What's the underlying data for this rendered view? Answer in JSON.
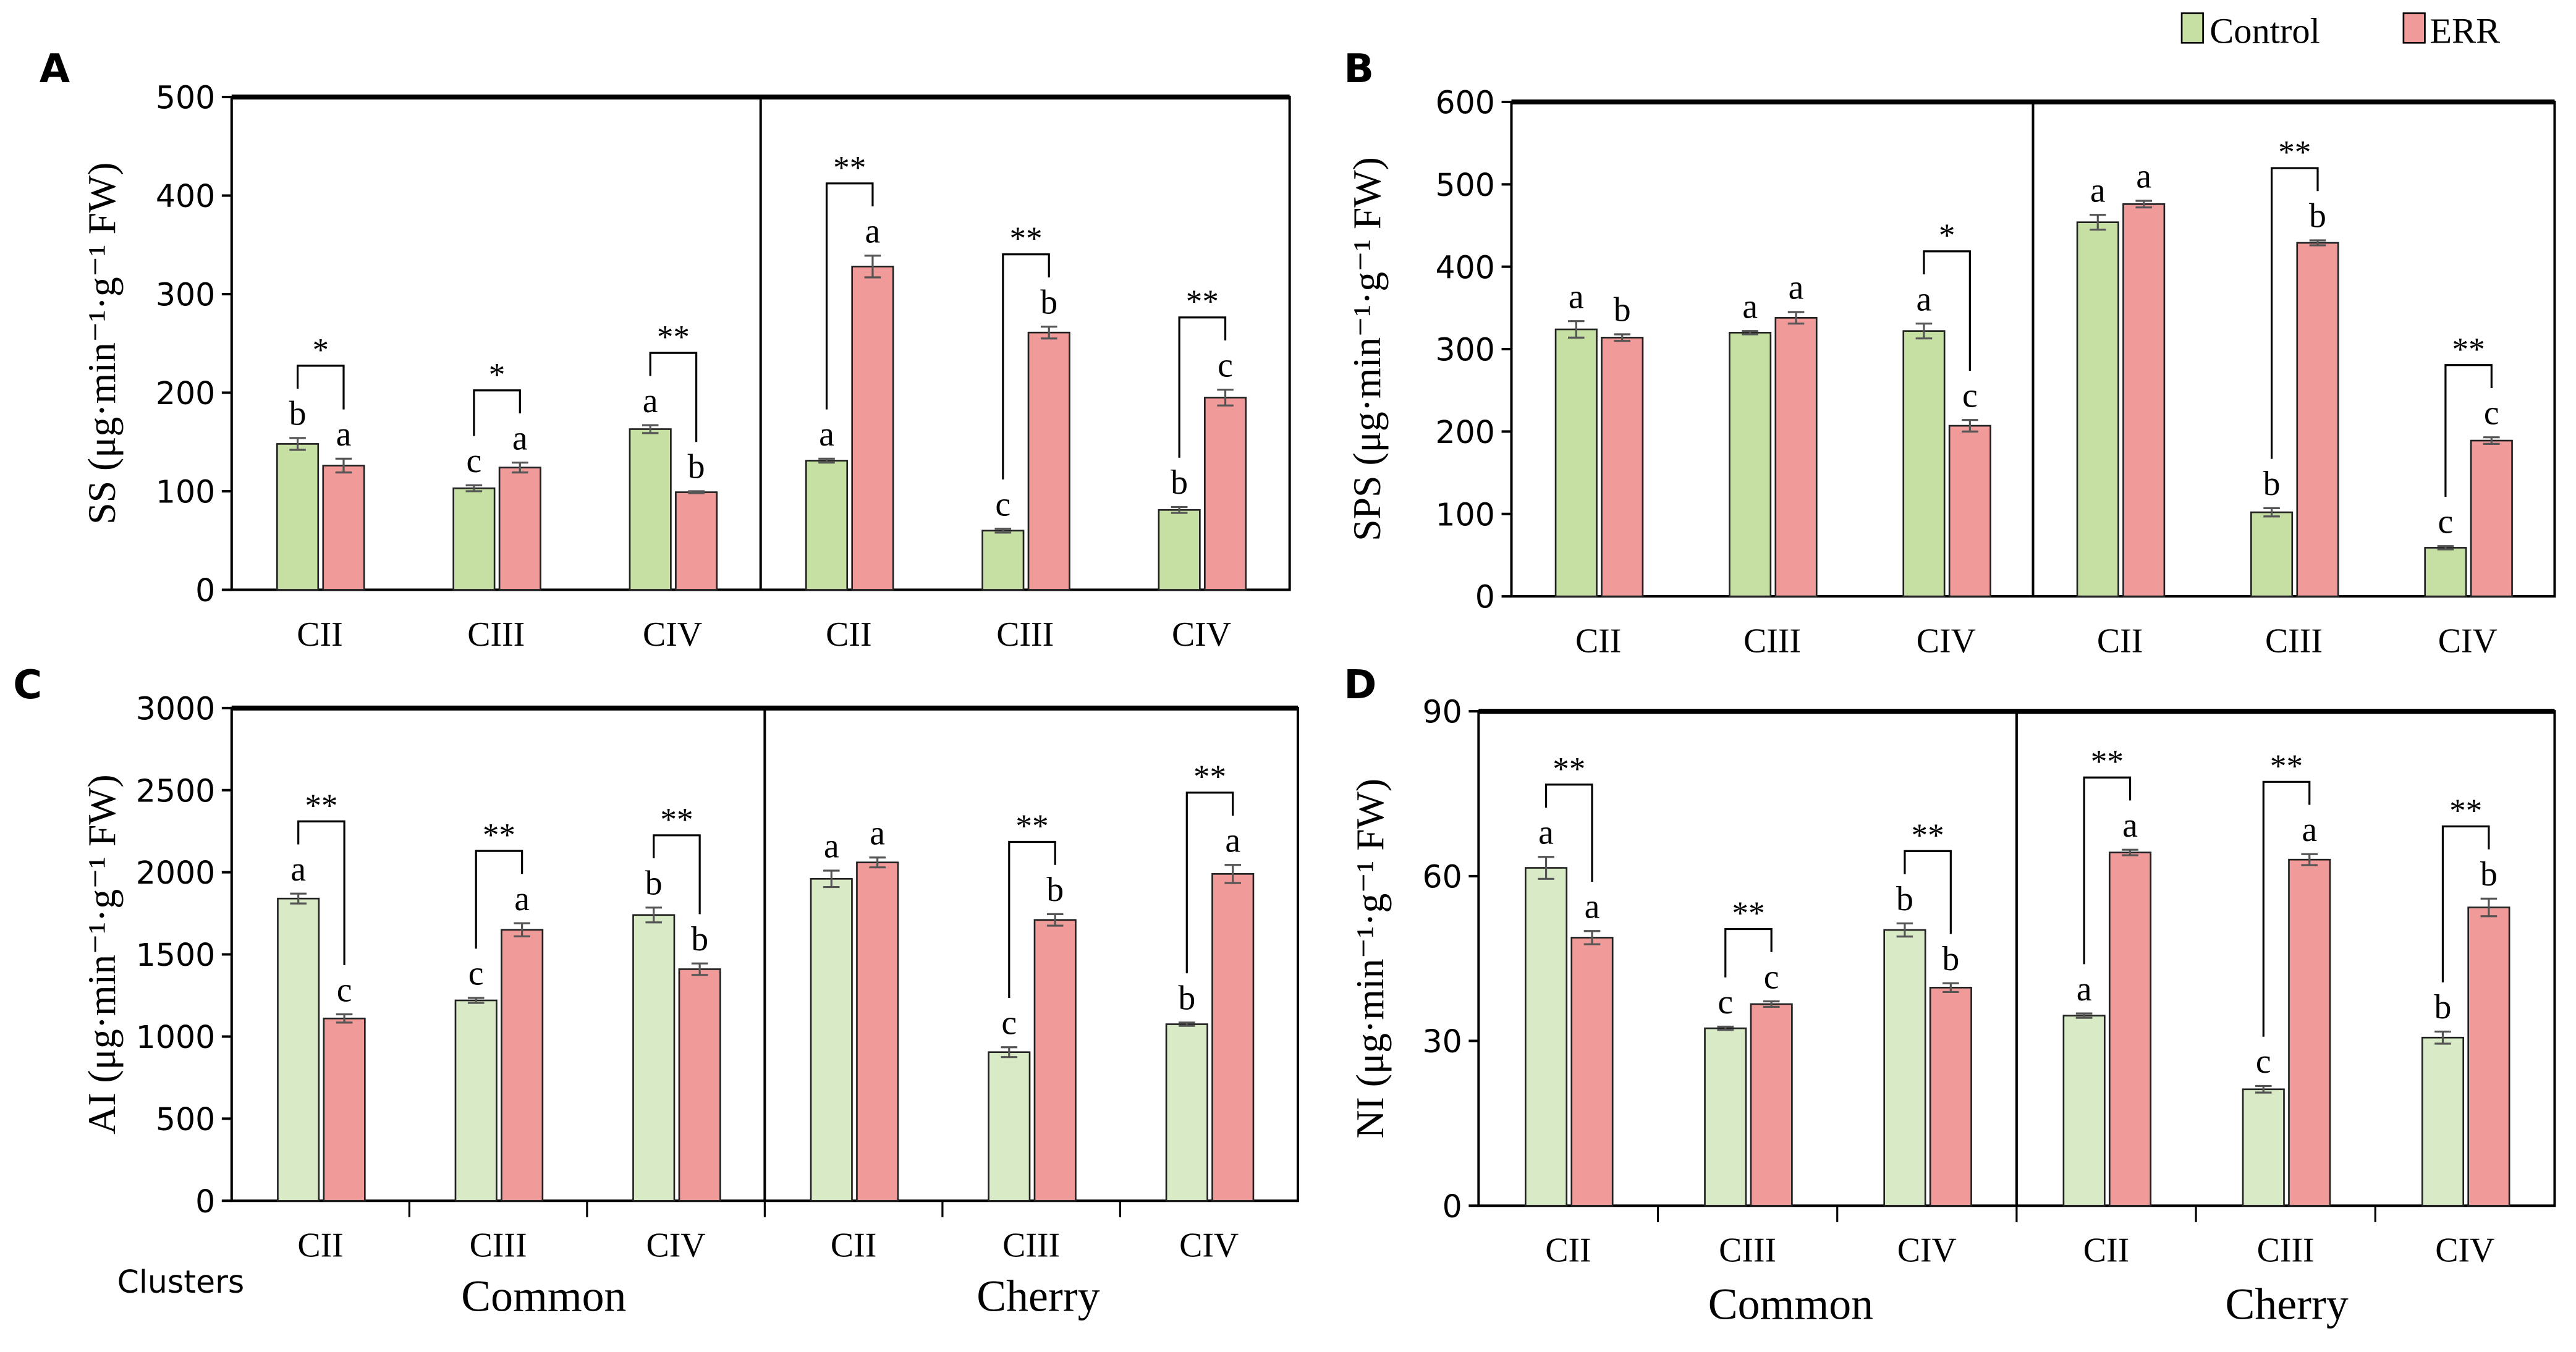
{
  "legend": {
    "control_label": "Control",
    "err_label": "ERR"
  },
  "colors": {
    "control": "#c6e0a4",
    "control_light": "#d8ebc6",
    "err": "#f09a99",
    "axis": "#000000"
  },
  "shared_labels": {
    "clusters": "Clusters",
    "common": "Common",
    "cherry": "Cherry"
  },
  "chart_data": [
    {
      "panel": "A",
      "type": "bar",
      "ylabel": "SS (μg·min⁻¹·g⁻¹ FW)",
      "ylim": [
        0,
        500
      ],
      "yticks": [
        0,
        100,
        200,
        300,
        400,
        500
      ],
      "categories": [
        "CII",
        "CIII",
        "CIV",
        "CII",
        "CIII",
        "CIV"
      ],
      "groups": [
        "Common",
        "Common",
        "Common",
        "Cherry",
        "Cherry",
        "Cherry"
      ],
      "series": [
        {
          "name": "Control",
          "values": [
            148,
            103,
            163,
            131,
            60,
            81
          ],
          "errors": [
            6,
            3,
            4,
            2,
            2,
            3
          ],
          "letters": [
            "b",
            "c",
            "a",
            "a",
            "c",
            "b"
          ]
        },
        {
          "name": "ERR",
          "values": [
            126,
            124,
            99,
            328,
            261,
            195
          ],
          "errors": [
            7,
            5,
            1,
            11,
            6,
            8
          ],
          "letters": [
            "a",
            "a",
            "b",
            "a",
            "b",
            "c"
          ]
        }
      ],
      "significance": [
        "*",
        "*",
        "**",
        "**",
        "**",
        "**"
      ]
    },
    {
      "panel": "B",
      "type": "bar",
      "ylabel": "SPS (μg·min⁻¹·g⁻¹ FW)",
      "ylim": [
        0,
        600
      ],
      "yticks": [
        0,
        100,
        200,
        300,
        400,
        500,
        600
      ],
      "categories": [
        "CII",
        "CIII",
        "CIV",
        "CII",
        "CIII",
        "CIV"
      ],
      "groups": [
        "Common",
        "Common",
        "Common",
        "Cherry",
        "Cherry",
        "Cherry"
      ],
      "series": [
        {
          "name": "Control",
          "values": [
            324,
            320,
            322,
            454,
            102,
            59
          ],
          "errors": [
            10,
            2,
            9,
            9,
            5,
            2
          ],
          "letters": [
            "a",
            "a",
            "a",
            "a",
            "b",
            "c"
          ]
        },
        {
          "name": "ERR",
          "values": [
            314,
            338,
            207,
            476,
            429,
            189
          ],
          "errors": [
            4,
            7,
            7,
            4,
            3,
            4
          ],
          "letters": [
            "b",
            "a",
            "c",
            "a",
            "b",
            "c"
          ]
        }
      ],
      "significance": [
        "",
        "",
        "*",
        "",
        "**",
        "**"
      ]
    },
    {
      "panel": "C",
      "type": "bar",
      "ylabel": "AI (μg·min⁻¹·g⁻¹ FW)",
      "ylim": [
        0,
        3000
      ],
      "yticks": [
        0,
        500,
        1000,
        1500,
        2000,
        2500,
        3000
      ],
      "categories": [
        "CII",
        "CIII",
        "CIV",
        "CII",
        "CIII",
        "CIV"
      ],
      "groups": [
        "Common",
        "Common",
        "Common",
        "Cherry",
        "Cherry",
        "Cherry"
      ],
      "series": [
        {
          "name": "Control",
          "values": [
            1840,
            1220,
            1740,
            1960,
            905,
            1075
          ],
          "errors": [
            30,
            15,
            45,
            50,
            30,
            10
          ],
          "letters": [
            "a",
            "c",
            "b",
            "a",
            "c",
            "b"
          ]
        },
        {
          "name": "ERR",
          "values": [
            1110,
            1650,
            1410,
            2060,
            1710,
            1990
          ],
          "errors": [
            25,
            40,
            35,
            30,
            35,
            55
          ],
          "letters": [
            "c",
            "a",
            "b",
            "a",
            "b",
            "a"
          ]
        }
      ],
      "significance": [
        "**",
        "**",
        "**",
        "",
        "**",
        "**"
      ]
    },
    {
      "panel": "D",
      "type": "bar",
      "ylabel": "NI (μg·min⁻¹·g⁻¹ FW)",
      "ylim": [
        0,
        90
      ],
      "yticks": [
        0,
        30,
        60,
        90
      ],
      "categories": [
        "CII",
        "CIII",
        "CIV",
        "CII",
        "CIII",
        "CIV"
      ],
      "groups": [
        "Common",
        "Common",
        "Common",
        "Cherry",
        "Cherry",
        "Cherry"
      ],
      "series": [
        {
          "name": "Control",
          "values": [
            61.5,
            32.3,
            50.2,
            34.6,
            21.2,
            30.6
          ],
          "errors": [
            2,
            0.3,
            1.2,
            0.4,
            0.6,
            1.1
          ],
          "letters": [
            "a",
            "c",
            "b",
            "a",
            "c",
            "b"
          ]
        },
        {
          "name": "ERR",
          "values": [
            48.8,
            36.7,
            39.7,
            64.3,
            63.0,
            54.3
          ],
          "errors": [
            1.2,
            0.5,
            0.8,
            0.5,
            1.0,
            1.6
          ],
          "letters": [
            "a",
            "c",
            "b",
            "a",
            "a",
            "b"
          ]
        }
      ],
      "significance": [
        "**",
        "**",
        "**",
        "**",
        "**",
        "**"
      ]
    }
  ]
}
